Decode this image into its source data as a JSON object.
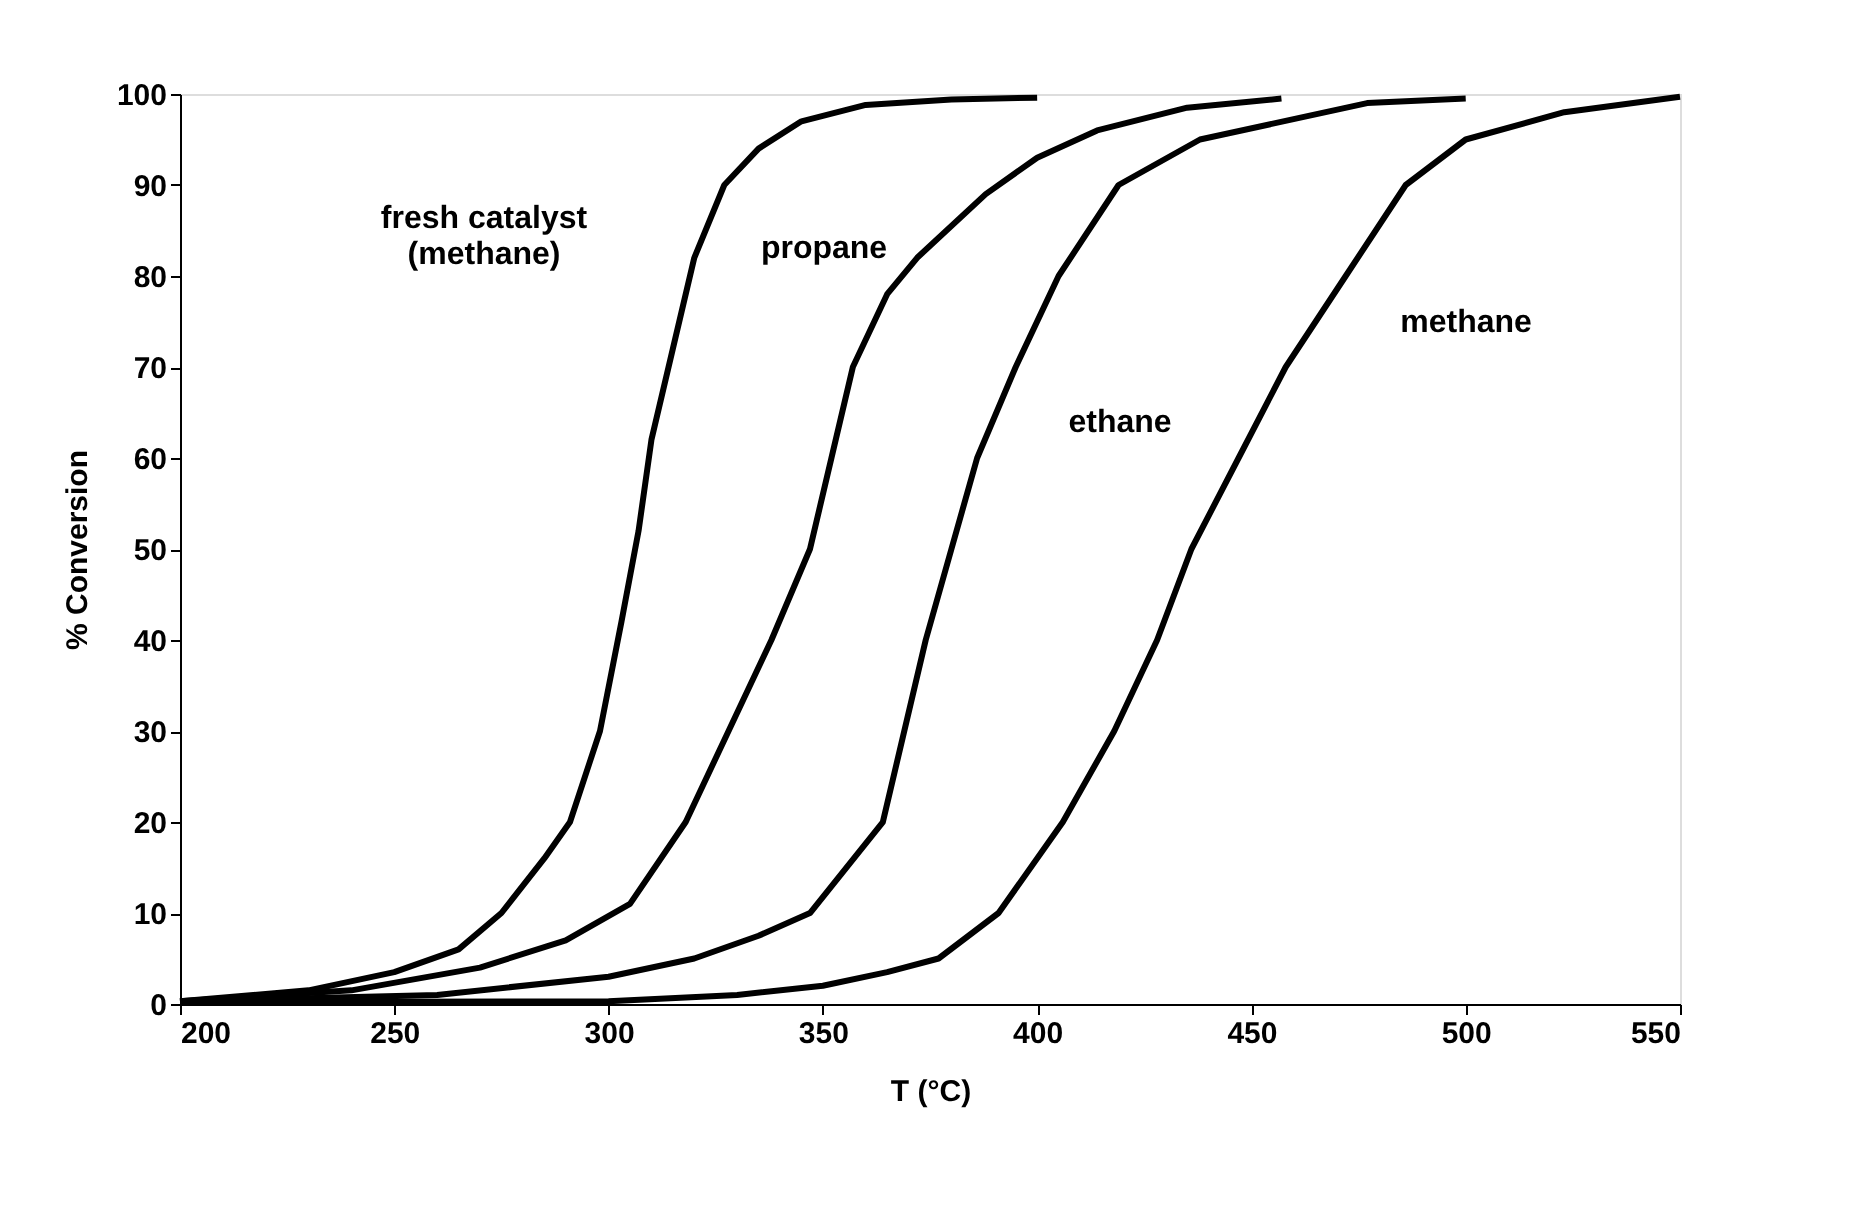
{
  "chart_data": {
    "type": "line",
    "xlabel": "T (°C)",
    "ylabel": "% Conversion",
    "xlim": [
      200,
      550
    ],
    "ylim": [
      0,
      100
    ],
    "xticks": [
      200,
      250,
      300,
      350,
      400,
      450,
      500,
      550
    ],
    "yticks": [
      0,
      10,
      20,
      30,
      40,
      50,
      60,
      70,
      80,
      90,
      100
    ],
    "grid": false,
    "marker": "none",
    "line_style": "solid",
    "series": [
      {
        "color": "#000000",
        "x": [
          200,
          230,
          250,
          265,
          275,
          285,
          291,
          298,
          303,
          307,
          310,
          315,
          320,
          327,
          335,
          345,
          360,
          380,
          400
        ],
        "values": [
          0.3,
          1.5,
          3.5,
          6,
          10,
          16,
          20,
          30,
          42,
          52,
          62,
          72,
          82,
          90,
          94,
          97,
          98.8,
          99.4,
          99.6
        ]
      },
      {
        "color": "#000000",
        "x": [
          200,
          240,
          270,
          290,
          305,
          318,
          328,
          338,
          347,
          352,
          357,
          365,
          372,
          388,
          400,
          414,
          435,
          457
        ],
        "values": [
          0.3,
          1.5,
          4,
          7,
          11,
          20,
          30,
          40,
          50,
          60,
          70,
          78,
          82,
          89,
          93,
          96,
          98.5,
          99.5
        ]
      },
      {
        "color": "#000000",
        "x": [
          200,
          260,
          300,
          320,
          335,
          347,
          364,
          374,
          380,
          386,
          395,
          405,
          419,
          438,
          477,
          500
        ],
        "values": [
          0.3,
          1,
          3,
          5,
          7.5,
          10,
          20,
          40,
          50,
          60,
          70,
          80,
          90,
          95,
          99,
          99.5
        ]
      },
      {
        "color": "#000000",
        "x": [
          200,
          300,
          330,
          350,
          365,
          377,
          391,
          406,
          418,
          428,
          436,
          447,
          458,
          472,
          486,
          500,
          523,
          550
        ],
        "values": [
          0.2,
          0.3,
          1,
          2,
          3.5,
          5,
          10,
          20,
          30,
          40,
          50,
          60,
          70,
          80,
          90,
          95,
          98,
          99.7
        ]
      }
    ],
    "annotations": [
      "fresh catalyst\n(methane)",
      "propane",
      "ethane",
      "methane"
    ]
  }
}
